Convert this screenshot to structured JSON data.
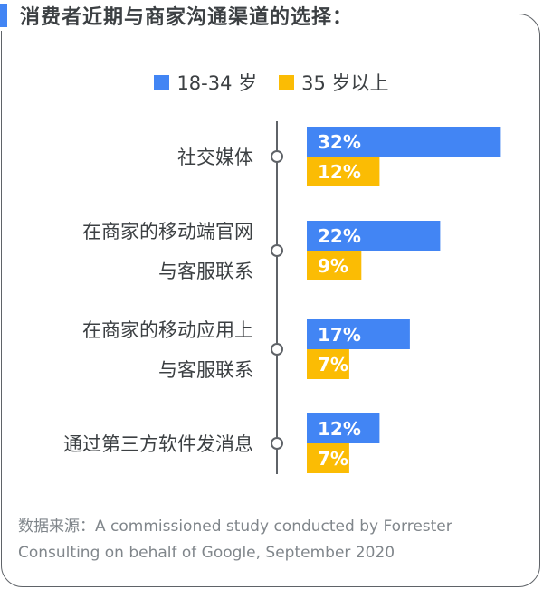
{
  "title": "消费者近期与商家沟通渠道的选择：",
  "legend": [
    {
      "label": "18-34 岁",
      "color": "#4285f4"
    },
    {
      "label": "35 岁以上",
      "color": "#fbbc04"
    }
  ],
  "chart_data": {
    "type": "bar",
    "orientation": "horizontal",
    "categories": [
      [
        "社交媒体"
      ],
      [
        "在商家的移动端官网",
        "与客服联系"
      ],
      [
        "在商家的移动应用上",
        "与客服联系"
      ],
      [
        "通过第三方软件发消息"
      ]
    ],
    "series": [
      {
        "name": "18-34 岁",
        "color": "#4285f4",
        "values": [
          32,
          22,
          17,
          12
        ],
        "labels": [
          "32%",
          "22%",
          "17%",
          "12%"
        ]
      },
      {
        "name": "35 岁以上",
        "color": "#fbbc04",
        "values": [
          12,
          9,
          7,
          7
        ],
        "labels": [
          "12%",
          "9%",
          "7%",
          "7%"
        ]
      }
    ],
    "unit": "%",
    "grid": false,
    "legend_position": "top"
  },
  "source": "数据来源：A commissioned study conducted by Forrester Consulting on behalf of Google, September 2020"
}
